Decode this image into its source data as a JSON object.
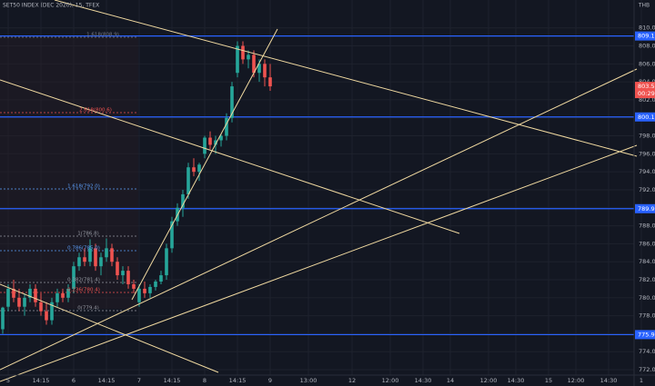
{
  "chart_data": {
    "type": "candlestick",
    "title": "SET50 INDEX (DEC 2020), 15, TFEX",
    "currency": "THB",
    "up_color": "#26a69a",
    "down_color": "#ef5350",
    "categories": [
      null,
      "5",
      null,
      null,
      null,
      null,
      null,
      "14:15",
      null,
      null,
      null,
      null,
      null,
      "6",
      null,
      null,
      null,
      null,
      null,
      "14:15",
      null,
      null,
      null,
      null,
      null,
      "7",
      null,
      null,
      null,
      null,
      null,
      "14:15",
      null,
      null,
      null,
      null,
      null,
      "8",
      null,
      null,
      null,
      null,
      null,
      "14:15",
      null,
      null,
      null,
      null,
      null,
      "9",
      null,
      null,
      null,
      null,
      null,
      null,
      "13:00",
      null,
      null,
      null,
      null,
      null,
      null,
      null,
      "12",
      null,
      null,
      null,
      null,
      null,
      null,
      "12:00",
      null,
      null,
      null,
      null,
      null,
      "14:30",
      null,
      null,
      null,
      null,
      "14",
      null,
      null,
      null,
      null,
      null,
      null,
      "12:00",
      null,
      null,
      null,
      null,
      "14:30",
      null,
      null,
      null,
      null,
      null,
      "15",
      null,
      null,
      null,
      null,
      "12:00",
      null,
      null,
      null,
      null,
      null,
      "14:30",
      null,
      null,
      null,
      null,
      null,
      "1",
      null,
      null
    ],
    "open": [
      776.5,
      779,
      781,
      780,
      779,
      780,
      781,
      779.5,
      778.5,
      777.5,
      779.5,
      780.5,
      780,
      781,
      783.5,
      784.5,
      784,
      785.5,
      783.5,
      784.5,
      785.5,
      784,
      782.5,
      783,
      781.5,
      779.5,
      781,
      780.5,
      781.2,
      781.8,
      782.5,
      785.5,
      788.5,
      790,
      791.5,
      794.5,
      794,
      796,
      797.8,
      797,
      797.5,
      798,
      800,
      805,
      808,
      806.5,
      807,
      805,
      806,
      804.5,
      null,
      null,
      null,
      null,
      null,
      null,
      null,
      null,
      null,
      null,
      null,
      null,
      null,
      null,
      null,
      null,
      null,
      null,
      null,
      null,
      null,
      null,
      null,
      null,
      null,
      null,
      null,
      null,
      null,
      null,
      null,
      null,
      null,
      null,
      null,
      null,
      null,
      null,
      null,
      null,
      null,
      null,
      null,
      null,
      null,
      null,
      null,
      null,
      null,
      null,
      null,
      null,
      null,
      null,
      null,
      null,
      null,
      null,
      null,
      null,
      null,
      null,
      null,
      null,
      null,
      null,
      null,
      null,
      null,
      null
    ],
    "high": [
      779,
      781.5,
      782,
      781,
      780.5,
      781.5,
      781.5,
      780.5,
      779.5,
      780,
      781,
      781,
      781.5,
      784,
      785,
      785.5,
      786.5,
      786,
      785,
      786.6,
      786,
      784.5,
      783.5,
      783.5,
      782,
      781.5,
      781.8,
      781.5,
      782,
      783,
      786,
      789,
      790.5,
      792,
      795,
      795.5,
      795,
      798,
      798.5,
      798,
      798.2,
      800.5,
      804,
      808.5,
      808.5,
      807.5,
      807.5,
      806.5,
      806.5,
      806,
      null,
      null,
      null,
      null,
      null,
      null,
      null,
      null,
      null,
      null,
      null,
      null,
      null,
      null,
      null,
      null,
      null,
      null,
      null,
      null,
      null,
      null,
      null,
      null,
      null,
      null,
      null,
      null,
      null,
      null,
      null,
      null,
      null,
      null,
      null,
      null,
      null,
      null,
      null,
      null,
      null,
      null,
      null,
      null,
      null,
      null,
      null,
      null,
      null,
      null,
      null,
      null,
      null,
      null,
      null,
      null,
      null,
      null,
      null,
      null,
      null,
      null,
      null,
      null,
      null,
      null,
      null,
      null,
      null,
      null
    ],
    "low": [
      776,
      778.5,
      779.5,
      778.5,
      778,
      779.5,
      779,
      778,
      777,
      777,
      779,
      779.5,
      779.5,
      780.5,
      783,
      783.5,
      783.5,
      783,
      782.5,
      784,
      783.5,
      782,
      781.5,
      781,
      780.5,
      779,
      780,
      780,
      780.8,
      781.5,
      782,
      785,
      788,
      789,
      791,
      793.5,
      793,
      795.5,
      796.5,
      796,
      796.8,
      797.5,
      799.5,
      804.5,
      806,
      805.5,
      804.5,
      804,
      803.5,
      803,
      null,
      null,
      null,
      null,
      null,
      null,
      null,
      null,
      null,
      null,
      null,
      null,
      null,
      null,
      null,
      null,
      null,
      null,
      null,
      null,
      null,
      null,
      null,
      null,
      null,
      null,
      null,
      null,
      null,
      null,
      null,
      null,
      null,
      null,
      null,
      null,
      null,
      null,
      null,
      null,
      null,
      null,
      null,
      null,
      null,
      null,
      null,
      null,
      null,
      null,
      null,
      null,
      null,
      null,
      null,
      null,
      null,
      null,
      null,
      null,
      null,
      null,
      null,
      null,
      null,
      null,
      null,
      null,
      null,
      null
    ],
    "close": [
      778.9,
      781,
      780,
      779,
      780,
      781,
      779.5,
      778.5,
      777.5,
      779.5,
      780.5,
      780,
      781,
      783.5,
      784.5,
      784,
      785.5,
      783.5,
      784.5,
      785.5,
      784,
      782.5,
      783,
      781.5,
      781,
      781,
      780.5,
      781.2,
      781.8,
      782.5,
      785.5,
      788.5,
      790,
      791.5,
      794.5,
      794,
      794.8,
      797.8,
      797,
      797.5,
      798,
      800,
      803.5,
      808,
      806.5,
      807,
      805,
      806,
      804.5,
      803.5,
      null,
      null,
      null,
      null,
      null,
      null,
      null,
      null,
      null,
      null,
      null,
      null,
      null,
      null,
      null,
      null,
      null,
      null,
      null,
      null,
      null,
      null,
      null,
      null,
      null,
      null,
      null,
      null,
      null,
      null,
      null,
      null,
      null,
      null,
      null,
      null,
      null,
      null,
      null,
      null,
      null,
      null,
      null,
      null,
      null,
      null,
      null,
      null,
      null,
      null,
      null,
      null,
      null,
      null,
      null,
      null,
      null,
      null,
      null,
      null,
      null,
      null,
      null,
      null,
      null,
      null,
      null,
      null,
      null,
      null
    ],
    "ylim": [
      771.4,
      813.1
    ],
    "yticks": [
      {
        "value": 772,
        "label": "772.0"
      },
      {
        "value": 774,
        "label": "774.0"
      },
      {
        "value": 776,
        "label": "776.0"
      },
      {
        "value": 778,
        "label": "778.0"
      },
      {
        "value": 780,
        "label": "780.0"
      },
      {
        "value": 782,
        "label": "782.0"
      },
      {
        "value": 784,
        "label": "784.0"
      },
      {
        "value": 786,
        "label": "786.0"
      },
      {
        "value": 788,
        "label": "788.0"
      },
      {
        "value": 790,
        "label": "790.0"
      },
      {
        "value": 792,
        "label": "792.0"
      },
      {
        "value": 794,
        "label": "794.0"
      },
      {
        "value": 796,
        "label": "796.0"
      },
      {
        "value": 798,
        "label": "798.0"
      },
      {
        "value": 800,
        "label": "800.0"
      },
      {
        "value": 802,
        "label": "802.0"
      },
      {
        "value": 804,
        "label": "804.0"
      },
      {
        "value": 806,
        "label": "806.0"
      },
      {
        "value": 808,
        "label": "808.0"
      },
      {
        "value": 810,
        "label": "810.0"
      }
    ],
    "grid": true,
    "price_lines": [
      809.1,
      800.1,
      789.9,
      775.9
    ],
    "price_line_color": "#2962ff",
    "last_price": {
      "value": 803.5,
      "countdown": "00:29"
    },
    "annotations": [
      {
        "text": "1.618(808.9)",
        "color": "#787b86"
      },
      {
        "text": "2.618(800.6)",
        "color": "#ef5350"
      },
      {
        "text": "1.618(792.0)",
        "color": "#5b9cf6"
      },
      {
        "text": "1(786.8)",
        "color": "#9598a1"
      },
      {
        "text": "0.786(785.0)",
        "color": "#5b9cf6"
      },
      {
        "text": "0.382(781.4)",
        "color": "#9598a1"
      },
      {
        "text": "0.236(780.4)",
        "color": "#ef5350"
      },
      {
        "text": "0(779.4)",
        "color": "#9598a1"
      }
    ]
  }
}
